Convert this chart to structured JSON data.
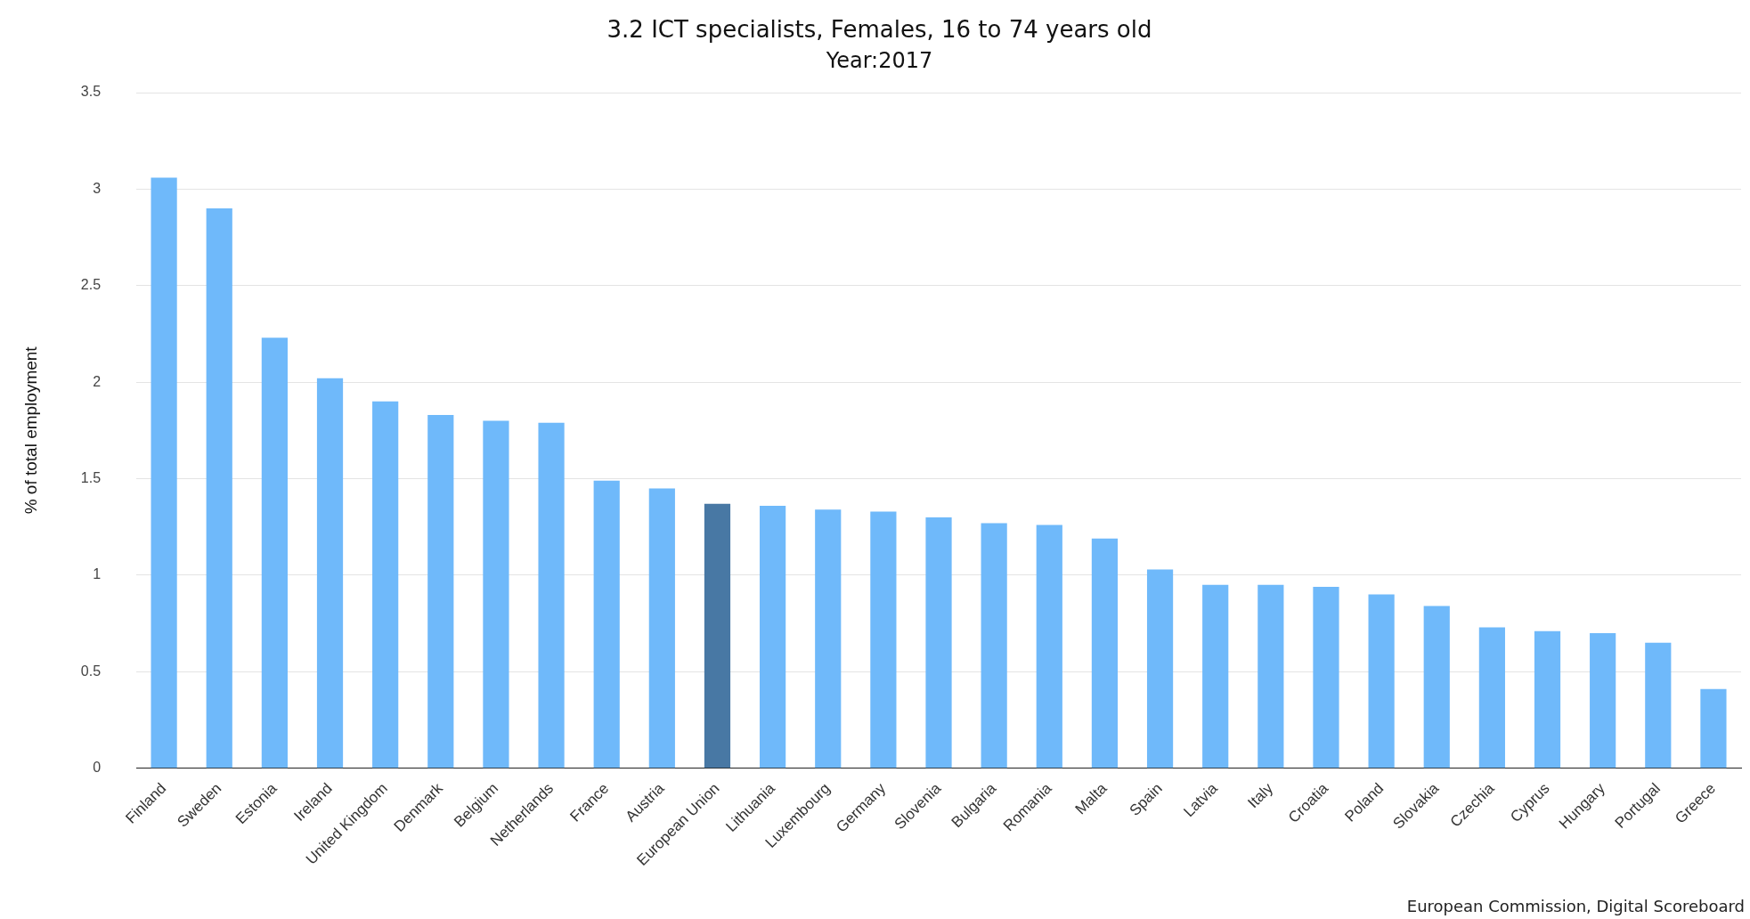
{
  "chart_data": {
    "type": "bar",
    "title": "3.2 ICT specialists, Females, 16 to 74 years old",
    "subtitle": "Year:2017",
    "ylabel": "% of total employment",
    "categories": [
      "Finland",
      "Sweden",
      "Estonia",
      "Ireland",
      "United Kingdom",
      "Denmark",
      "Belgium",
      "Netherlands",
      "France",
      "Austria",
      "European Union",
      "Lithuania",
      "Luxembourg",
      "Germany",
      "Slovenia",
      "Bulgaria",
      "Romania",
      "Malta",
      "Spain",
      "Latvia",
      "Italy",
      "Croatia",
      "Poland",
      "Slovakia",
      "Czechia",
      "Cyprus",
      "Hungary",
      "Portugal",
      "Greece"
    ],
    "values": [
      3.06,
      2.9,
      2.23,
      2.02,
      1.9,
      1.83,
      1.8,
      1.79,
      1.49,
      1.45,
      1.37,
      1.36,
      1.34,
      1.33,
      1.3,
      1.27,
      1.26,
      1.19,
      1.03,
      0.95,
      0.95,
      0.94,
      0.9,
      0.84,
      0.73,
      0.71,
      0.7,
      0.65,
      0.41
    ],
    "colors": [
      "#6fb9fa",
      "#6fb9fa",
      "#6fb9fa",
      "#6fb9fa",
      "#6fb9fa",
      "#6fb9fa",
      "#6fb9fa",
      "#6fb9fa",
      "#6fb9fa",
      "#6fb9fa",
      "#4878a4",
      "#6fb9fa",
      "#6fb9fa",
      "#6fb9fa",
      "#6fb9fa",
      "#6fb9fa",
      "#6fb9fa",
      "#6fb9fa",
      "#6fb9fa",
      "#6fb9fa",
      "#6fb9fa",
      "#6fb9fa",
      "#6fb9fa",
      "#6fb9fa",
      "#6fb9fa",
      "#6fb9fa",
      "#6fb9fa",
      "#6fb9fa",
      "#6fb9fa"
    ],
    "ylim": [
      0,
      3.5
    ],
    "yticks": [
      0,
      0.5,
      1,
      1.5,
      2,
      2.5,
      3,
      3.5
    ],
    "grid": "y",
    "legend": false,
    "annotations": [
      "European Commission, Digital Scoreboard"
    ]
  }
}
